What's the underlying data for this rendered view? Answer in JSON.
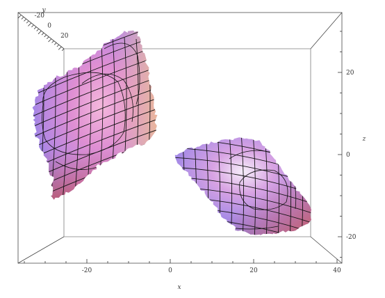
{
  "chart_data": {
    "type": "surface3d",
    "axes": {
      "x": {
        "label": "x",
        "ticks": [
          -20,
          0,
          20,
          40
        ]
      },
      "y": {
        "label": "y",
        "ticks": [
          -20,
          0,
          20
        ]
      },
      "z": {
        "label": "z",
        "ticks": [
          20,
          0,
          -20
        ]
      }
    },
    "surfaces": [
      {
        "id": "left",
        "x_range": [
          -35,
          -5
        ],
        "z_range": [
          -8,
          31
        ]
      },
      {
        "id": "right",
        "x_range": [
          0,
          35
        ],
        "z_range": [
          -19,
          4
        ]
      }
    ],
    "mesh": true,
    "colors": {
      "pink": "#e39ad6",
      "blue": "#7a8ce8",
      "peach": "#f2c19a",
      "red": "#dd5a55"
    }
  }
}
